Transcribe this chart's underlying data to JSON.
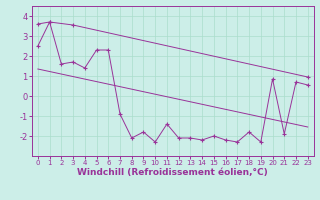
{
  "line1_x": [
    0,
    1,
    2,
    3,
    4,
    5,
    6,
    7,
    8,
    9,
    10,
    11,
    12,
    13,
    14,
    15,
    16,
    17,
    18,
    19,
    20,
    21,
    22,
    23
  ],
  "line1_y": [
    2.5,
    3.7,
    1.6,
    1.7,
    1.4,
    2.3,
    2.3,
    -0.9,
    -2.1,
    -1.8,
    -2.3,
    -1.4,
    -2.1,
    -2.1,
    -2.2,
    -2.0,
    -2.2,
    -2.3,
    -1.8,
    -2.3,
    0.85,
    -1.9,
    0.7,
    0.55
  ],
  "upper_line_x": [
    0,
    1,
    3,
    23
  ],
  "upper_line_y": [
    3.6,
    3.7,
    3.55,
    0.95
  ],
  "lower_line_x": [
    0,
    23
  ],
  "lower_line_y": [
    1.35,
    -1.55
  ],
  "color": "#993399",
  "bg_color": "#cceee8",
  "grid_color": "#aaddcc",
  "xlabel": "Windchill (Refroidissement éolien,°C)",
  "xlim": [
    -0.5,
    23.5
  ],
  "ylim": [
    -3.0,
    4.5
  ],
  "yticks": [
    -2,
    -1,
    0,
    1,
    2,
    3,
    4
  ],
  "xticks": [
    0,
    1,
    2,
    3,
    4,
    5,
    6,
    7,
    8,
    9,
    10,
    11,
    12,
    13,
    14,
    15,
    16,
    17,
    18,
    19,
    20,
    21,
    22,
    23
  ]
}
